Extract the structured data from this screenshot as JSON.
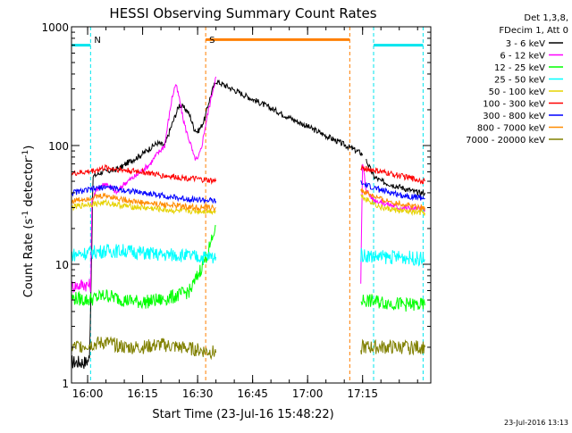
{
  "chart_data": {
    "type": "line",
    "title": "HESSI Observing Summary Count Rates",
    "xlabel": "Start Time (23-Jul-16 15:48:22)",
    "ylabel_main": "Count Rate (s",
    "ylabel_sup1": "-1",
    "ylabel_mid": " detector",
    "ylabel_sup2": "-1",
    "ylabel_end": ")",
    "y_scale": "log",
    "ylim": [
      1,
      1000
    ],
    "xlim_minutes": [
      -4.4,
      93.6
    ],
    "x_ticks": [
      {
        "label": "16:00",
        "minute": 0
      },
      {
        "label": "16:15",
        "minute": 15
      },
      {
        "label": "16:30",
        "minute": 30
      },
      {
        "label": "16:45",
        "minute": 45
      },
      {
        "label": "17:00",
        "minute": 60
      },
      {
        "label": "17:15",
        "minute": 75
      }
    ],
    "y_ticks": [
      {
        "label": "1",
        "value": 1
      },
      {
        "label": "10",
        "value": 10
      },
      {
        "label": "100",
        "value": 100
      },
      {
        "label": "1000",
        "value": 1000
      }
    ],
    "legend": {
      "placement": "top-right, outside plot",
      "header": [
        "Det 1,3,8,",
        "FDecim 1, Att 0"
      ]
    },
    "markers": [
      {
        "label": "N",
        "minute": 0.8,
        "color": "#00e5ee"
      },
      {
        "label": "S",
        "minute": 32.2,
        "color": "#ff7f00"
      }
    ],
    "series": [
      {
        "name": "3 - 6 keV",
        "color": "#000000",
        "points": [
          [
            -4.4,
            1.5
          ],
          [
            -0.5,
            1.5
          ],
          [
            0.5,
            1.6
          ],
          [
            1.5,
            55
          ],
          [
            4,
            60
          ],
          [
            7,
            62
          ],
          [
            9,
            65
          ],
          [
            11,
            72
          ],
          [
            13,
            78
          ],
          [
            15,
            85
          ],
          [
            17,
            95
          ],
          [
            19,
            105
          ],
          [
            21,
            100
          ],
          [
            23,
            150
          ],
          [
            25,
            220
          ],
          [
            27,
            200
          ],
          [
            28,
            175
          ],
          [
            29,
            140
          ],
          [
            30,
            130
          ],
          [
            31,
            145
          ],
          [
            32,
            170
          ],
          [
            33,
            230
          ],
          [
            34,
            290
          ],
          [
            35,
            350
          ],
          [
            75,
            85
          ],
          [
            76,
            75
          ],
          [
            78,
            55
          ],
          [
            80,
            50
          ],
          [
            85,
            45
          ],
          [
            90,
            40
          ],
          [
            92,
            40
          ]
        ],
        "gap_after_index": 24
      },
      {
        "name": "6 - 12 keV",
        "color": "#ff00ff",
        "points": [
          [
            -4.4,
            6.5
          ],
          [
            -1,
            6.8
          ],
          [
            0.8,
            6.6
          ],
          [
            1.2,
            35
          ],
          [
            3,
            45
          ],
          [
            5,
            48
          ],
          [
            8,
            40
          ],
          [
            10,
            48
          ],
          [
            13,
            55
          ],
          [
            15,
            62
          ],
          [
            17,
            70
          ],
          [
            19,
            85
          ],
          [
            21,
            100
          ],
          [
            22,
            160
          ],
          [
            23,
            250
          ],
          [
            24,
            330
          ],
          [
            25,
            250
          ],
          [
            26,
            170
          ],
          [
            27,
            130
          ],
          [
            28,
            105
          ],
          [
            29,
            80
          ],
          [
            30,
            75
          ],
          [
            31,
            95
          ],
          [
            32,
            140
          ],
          [
            33,
            200
          ],
          [
            34,
            280
          ],
          [
            35,
            380
          ],
          [
            74.5,
            6.5
          ],
          [
            75,
            70
          ],
          [
            76,
            42
          ],
          [
            78,
            35
          ],
          [
            85,
            30
          ],
          [
            92,
            29
          ]
        ],
        "gap_after_index": 26
      },
      {
        "name": "12 - 25 keV",
        "color": "#00ff00",
        "points": [
          [
            -4.4,
            5.2
          ],
          [
            0,
            5
          ],
          [
            5,
            5.5
          ],
          [
            10,
            5
          ],
          [
            15,
            4.8
          ],
          [
            20,
            5
          ],
          [
            25,
            5.5
          ],
          [
            28,
            6
          ],
          [
            30,
            8
          ],
          [
            32,
            11
          ],
          [
            34,
            16
          ],
          [
            35,
            21
          ],
          [
            74.5,
            5
          ],
          [
            80,
            4.8
          ],
          [
            86,
            4.6
          ],
          [
            92,
            4.5
          ]
        ],
        "gap_after_index": 11
      },
      {
        "name": "25 - 50 keV",
        "color": "#00ffff",
        "points": [
          [
            -4.4,
            12
          ],
          [
            0,
            12.5
          ],
          [
            5,
            13
          ],
          [
            10,
            13
          ],
          [
            15,
            12.5
          ],
          [
            20,
            12
          ],
          [
            25,
            12
          ],
          [
            30,
            11.5
          ],
          [
            35,
            11.5
          ],
          [
            74.5,
            12
          ],
          [
            80,
            11.5
          ],
          [
            86,
            11.5
          ],
          [
            92,
            11
          ]
        ],
        "gap_after_index": 8
      },
      {
        "name": "50 - 100 keV",
        "color": "#e6d200",
        "points": [
          [
            -4.4,
            30
          ],
          [
            0,
            32
          ],
          [
            5,
            33
          ],
          [
            10,
            31
          ],
          [
            15,
            30
          ],
          [
            20,
            29
          ],
          [
            25,
            28
          ],
          [
            30,
            28
          ],
          [
            35,
            28
          ],
          [
            74.5,
            38
          ],
          [
            80,
            30
          ],
          [
            86,
            28
          ],
          [
            92,
            27
          ]
        ],
        "gap_after_index": 8
      },
      {
        "name": "100 - 300 keV",
        "color": "#ff0000",
        "points": [
          [
            -4.4,
            58
          ],
          [
            0,
            60
          ],
          [
            5,
            65
          ],
          [
            10,
            62
          ],
          [
            15,
            60
          ],
          [
            20,
            56
          ],
          [
            25,
            54
          ],
          [
            30,
            52
          ],
          [
            35,
            50
          ],
          [
            74.5,
            65
          ],
          [
            80,
            60
          ],
          [
            86,
            55
          ],
          [
            92,
            50
          ]
        ],
        "gap_after_index": 8
      },
      {
        "name": "300 - 800 keV",
        "color": "#0000ff",
        "points": [
          [
            -4.4,
            40
          ],
          [
            0,
            42
          ],
          [
            5,
            45
          ],
          [
            10,
            42
          ],
          [
            15,
            40
          ],
          [
            20,
            38
          ],
          [
            25,
            36
          ],
          [
            30,
            35
          ],
          [
            35,
            34
          ],
          [
            74.5,
            48
          ],
          [
            80,
            42
          ],
          [
            86,
            38
          ],
          [
            92,
            36
          ]
        ],
        "gap_after_index": 8
      },
      {
        "name": "800 - 7000 keV",
        "color": "#ff8c00",
        "points": [
          [
            -4.4,
            34
          ],
          [
            0,
            36
          ],
          [
            5,
            38
          ],
          [
            10,
            35
          ],
          [
            15,
            33
          ],
          [
            20,
            32
          ],
          [
            25,
            31
          ],
          [
            30,
            30
          ],
          [
            35,
            30
          ],
          [
            74.5,
            42
          ],
          [
            80,
            35
          ],
          [
            86,
            32
          ],
          [
            92,
            30
          ]
        ],
        "gap_after_index": 8
      },
      {
        "name": "7000 - 20000 keV",
        "color": "#808000",
        "points": [
          [
            -4.4,
            2
          ],
          [
            0,
            2.1
          ],
          [
            5,
            2.2
          ],
          [
            10,
            2
          ],
          [
            15,
            2
          ],
          [
            20,
            2.1
          ],
          [
            25,
            2
          ],
          [
            30,
            1.9
          ],
          [
            35,
            1.8
          ],
          [
            74.5,
            2
          ],
          [
            80,
            2
          ],
          [
            86,
            2
          ],
          [
            92,
            2
          ]
        ],
        "gap_after_index": 8
      }
    ],
    "attenuator_blocks": [
      {
        "minute_start": -4.4,
        "minute_end": 0.8,
        "color": "#00e5ee",
        "level": 700
      },
      {
        "minute_start": 78,
        "minute_end": 91.5,
        "color": "#00e5ee",
        "level": 700
      },
      {
        "minute_start": 32.2,
        "minute_end": 71.5,
        "color": "#ff7f00",
        "level": 780
      }
    ],
    "grid": false
  },
  "footer_timestamp": "23-Jul-2016 13:13"
}
